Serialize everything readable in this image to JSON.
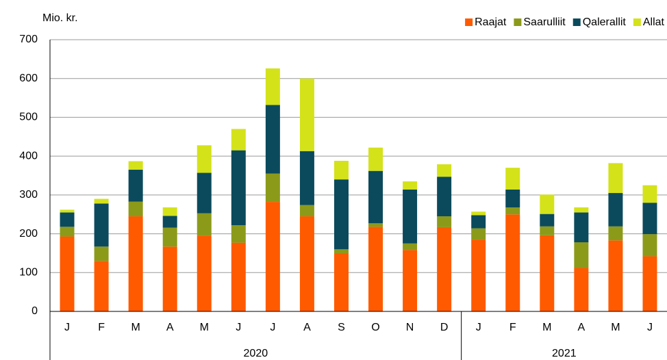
{
  "chart_data": {
    "type": "stacked_bar",
    "y_label": "Mio. kr.",
    "categories": [
      "J",
      "F",
      "M",
      "A",
      "M",
      "J",
      "J",
      "A",
      "S",
      "O",
      "N",
      "D",
      "J",
      "F",
      "M",
      "A",
      "M",
      "J"
    ],
    "groups": [
      {
        "label": "2020",
        "size": 12
      },
      {
        "label": "2021",
        "size": 6
      }
    ],
    "series": [
      {
        "name": "Raajat",
        "color": "#ff5a00",
        "values": [
          193,
          130,
          245,
          167,
          195,
          177,
          282,
          245,
          149,
          218,
          158,
          217,
          185,
          250,
          196,
          112,
          183,
          142
        ]
      },
      {
        "name": "Saarulliit",
        "color": "#8c9a1a",
        "values": [
          25,
          37,
          38,
          49,
          58,
          45,
          73,
          29,
          11,
          9,
          17,
          28,
          29,
          18,
          23,
          66,
          36,
          57
        ]
      },
      {
        "name": "Qalerallit",
        "color": "#0b4a5c",
        "values": [
          37,
          111,
          82,
          30,
          104,
          193,
          177,
          139,
          180,
          135,
          139,
          102,
          34,
          46,
          32,
          77,
          86,
          81
        ]
      },
      {
        "name": "Allat",
        "color": "#d4e21a",
        "values": [
          7,
          12,
          22,
          22,
          71,
          55,
          94,
          187,
          48,
          60,
          21,
          32,
          9,
          56,
          50,
          13,
          77,
          45
        ]
      }
    ],
    "ylim": [
      0,
      700
    ],
    "yticks": [
      0,
      100,
      200,
      300,
      400,
      500,
      600,
      700
    ],
    "grid": true,
    "legend": "top-right"
  }
}
